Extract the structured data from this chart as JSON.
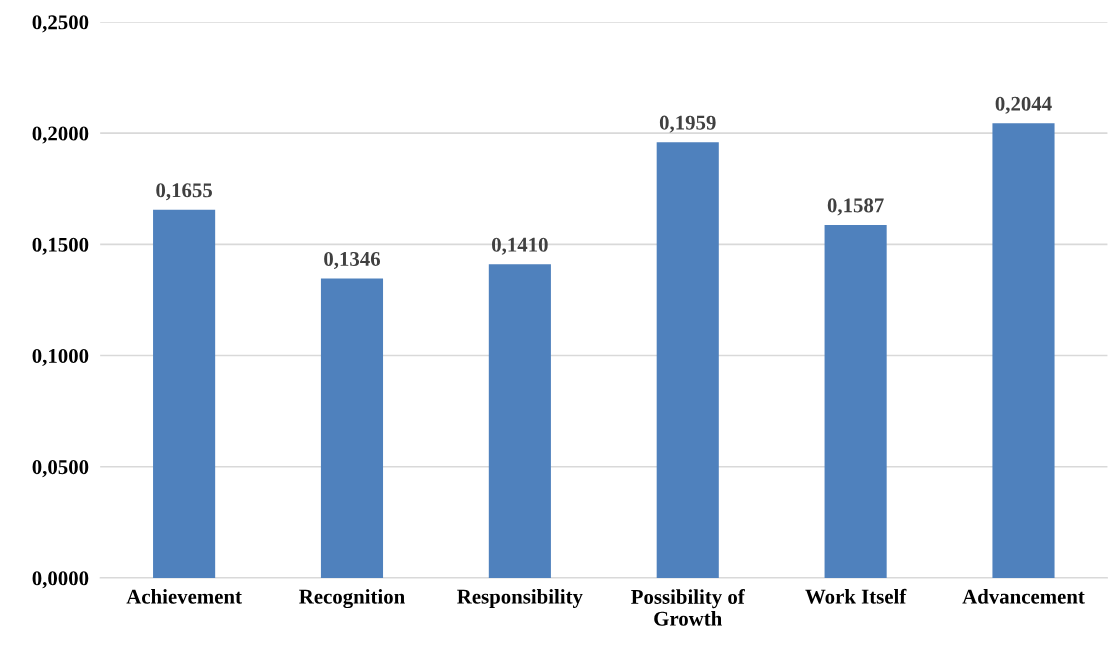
{
  "chart_data": {
    "type": "bar",
    "categories": [
      "Achievement",
      "Recognition",
      "Responsibility",
      "Possibility of\nGrowth",
      "Work Itself",
      "Advancement"
    ],
    "values": [
      0.1655,
      0.1346,
      0.141,
      0.1959,
      0.1587,
      0.2044
    ],
    "value_labels": [
      "0,1655",
      "0,1346",
      "0,1410",
      "0,1959",
      "0,1587",
      "0,2044"
    ],
    "color": "#4f81bd",
    "ylim": [
      0,
      0.25
    ],
    "yticks": [
      {
        "value": 0,
        "label": "0,0000"
      },
      {
        "value": 0.05,
        "label": "0,0500"
      },
      {
        "value": 0.1,
        "label": "0,1000"
      },
      {
        "value": 0.15,
        "label": "0,1500"
      },
      {
        "value": 0.2,
        "label": "0,2000"
      },
      {
        "value": 0.25,
        "label": "0,2500"
      }
    ],
    "grid": "y"
  }
}
